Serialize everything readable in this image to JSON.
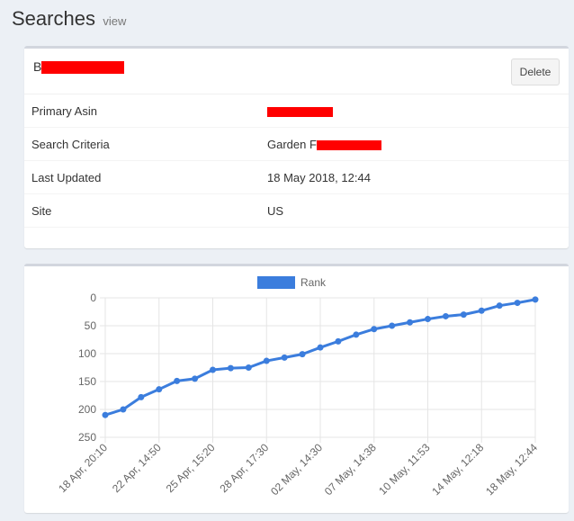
{
  "header": {
    "title": "Searches",
    "subtitle": "view"
  },
  "search": {
    "title_prefix": "B",
    "delete_label": "Delete",
    "details": [
      {
        "label": "Primary Asin",
        "value": ""
      },
      {
        "label": "Search Criteria",
        "value": "Garden F"
      },
      {
        "label": "Last Updated",
        "value": "18 May 2018, 12:44"
      },
      {
        "label": "Site",
        "value": "US"
      }
    ],
    "redaction_color": "#ff0000"
  },
  "chart_data": {
    "type": "line",
    "legend": {
      "label": "Rank",
      "color": "#3b7ddd",
      "position": "top"
    },
    "x_labels": [
      "18 Apr, 20:10",
      "22 Apr, 14:50",
      "25 Apr, 15:20",
      "28 Apr, 17:30",
      "02 May, 14:30",
      "07 May, 14:38",
      "10 May, 11:53",
      "14 May, 12:18",
      "18 May, 12:44"
    ],
    "series": [
      {
        "name": "Rank",
        "color": "#3b7ddd",
        "values": [
          210,
          200,
          178,
          164,
          149,
          145,
          129,
          126,
          125,
          113,
          107,
          101,
          89,
          78,
          66,
          56,
          50,
          44,
          38,
          33,
          30,
          23,
          14,
          9,
          3
        ]
      }
    ],
    "y_ticks": [
      0,
      50,
      100,
      150,
      200,
      250
    ],
    "ylim": [
      0,
      250
    ],
    "y_reversed": true,
    "grid": true
  }
}
